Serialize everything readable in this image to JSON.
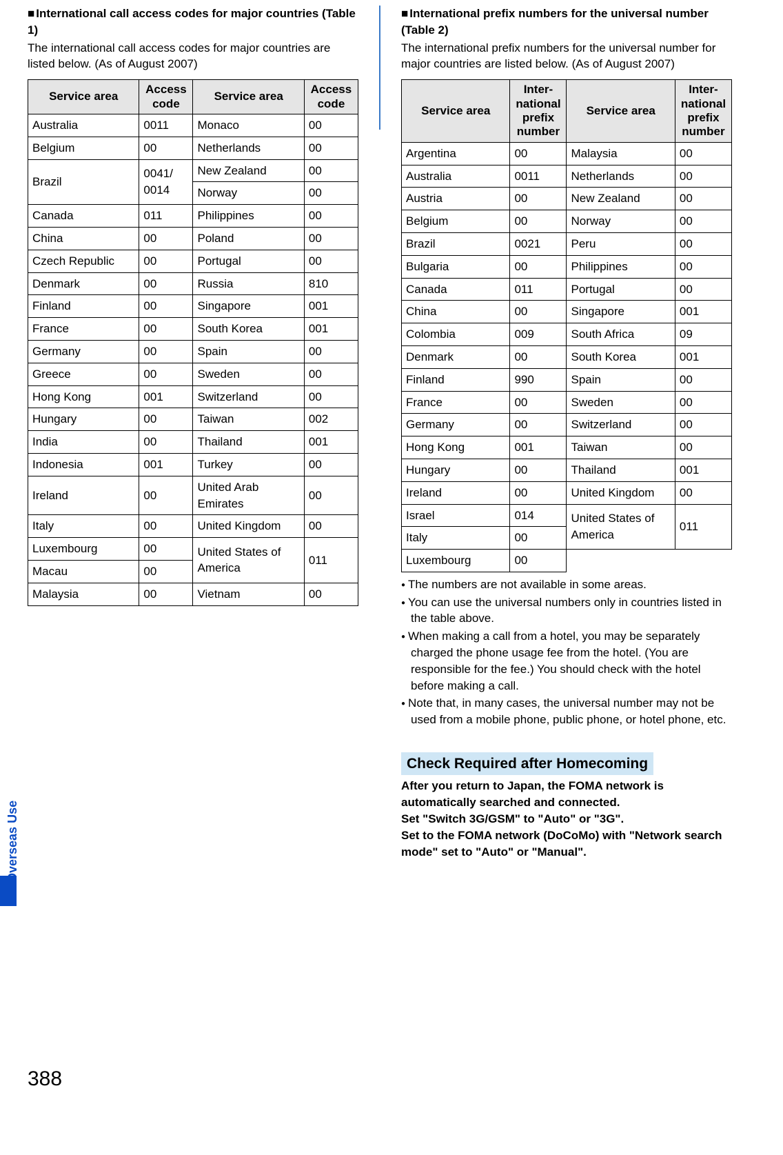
{
  "sideLabel": "Overseas Use",
  "pageNumber": "388",
  "left": {
    "heading": "International call access codes for major countries (Table 1)",
    "intro": "The international call access codes for major countries are listed below. (As of August 2007)",
    "headers": {
      "area": "Service area",
      "code": "Access code"
    }
  },
  "right": {
    "heading": "International prefix numbers for the universal number (Table 2)",
    "intro": "The international prefix numbers for the universal number for major countries are listed below. (As of August 2007)",
    "headers": {
      "area": "Service area",
      "code": "Inter-national prefix number"
    },
    "notes": [
      "The numbers are not available in some areas.",
      "You can use the universal numbers only in countries listed in the table above.",
      "When making a call from a hotel, you may be separately charged the phone usage fee from the hotel. (You are responsible for the fee.) You should check with the hotel before making a call.",
      "Note that, in many cases, the universal number may not be used from a mobile phone, public phone, or hotel phone, etc."
    ],
    "sectionHeading": "Check Required after Homecoming",
    "bold1": "After you return to Japan, the FOMA network is automatically searched and connected.",
    "bold2": "Set \"Switch 3G/GSM\" to \"Auto\" or \"3G\".",
    "bold3": "Set to the FOMA network (DoCoMo) with \"Network search mode\" set to \"Auto\" or \"Manual\"."
  },
  "t1L": [
    [
      "Australia",
      "0011"
    ],
    [
      "Belgium",
      "00"
    ],
    [
      "Brazil",
      "0041/\n0014"
    ],
    [
      "Canada",
      "011"
    ],
    [
      "China",
      "00"
    ],
    [
      "Czech Republic",
      "00"
    ],
    [
      "Denmark",
      "00"
    ],
    [
      "Finland",
      "00"
    ],
    [
      "France",
      "00"
    ],
    [
      "Germany",
      "00"
    ],
    [
      "Greece",
      "00"
    ],
    [
      "Hong Kong",
      "001"
    ],
    [
      "Hungary",
      "00"
    ],
    [
      "India",
      "00"
    ],
    [
      "Indonesia",
      "001"
    ],
    [
      "Ireland",
      "00"
    ],
    [
      "Italy",
      "00"
    ],
    [
      "Luxembourg",
      "00"
    ],
    [
      "Macau",
      "00"
    ],
    [
      "Malaysia",
      "00"
    ]
  ],
  "t1R": [
    [
      "Monaco",
      "00"
    ],
    [
      "Netherlands",
      "00"
    ],
    [
      "New Zealand",
      "00"
    ],
    [
      "Norway",
      "00"
    ],
    [
      "Philippines",
      "00"
    ],
    [
      "Poland",
      "00"
    ],
    [
      "Portugal",
      "00"
    ],
    [
      "Russia",
      "810"
    ],
    [
      "Singapore",
      "001"
    ],
    [
      "South Korea",
      "001"
    ],
    [
      "Spain",
      "00"
    ],
    [
      "Sweden",
      "00"
    ],
    [
      "Switzerland",
      "00"
    ],
    [
      "Taiwan",
      "002"
    ],
    [
      "Thailand",
      "001"
    ],
    [
      "Turkey",
      "00"
    ],
    [
      "United Arab Emirates",
      "00"
    ],
    [
      "United Kingdom",
      "00"
    ],
    [
      "United States of America",
      "011"
    ],
    [
      "Vietnam",
      "00"
    ]
  ],
  "t2L": [
    [
      "Argentina",
      "00"
    ],
    [
      "Australia",
      "0011"
    ],
    [
      "Austria",
      "00"
    ],
    [
      "Belgium",
      "00"
    ],
    [
      "Brazil",
      "0021"
    ],
    [
      "Bulgaria",
      "00"
    ],
    [
      "Canada",
      "011"
    ],
    [
      "China",
      "00"
    ],
    [
      "Colombia",
      "009"
    ],
    [
      "Denmark",
      "00"
    ],
    [
      "Finland",
      "990"
    ],
    [
      "France",
      "00"
    ],
    [
      "Germany",
      "00"
    ],
    [
      "Hong Kong",
      "001"
    ],
    [
      "Hungary",
      "00"
    ],
    [
      "Ireland",
      "00"
    ],
    [
      "Israel",
      "014"
    ],
    [
      "Italy",
      "00"
    ],
    [
      "Luxembourg",
      "00"
    ]
  ],
  "t2R": [
    [
      "Malaysia",
      "00"
    ],
    [
      "Netherlands",
      "00"
    ],
    [
      "New Zealand",
      "00"
    ],
    [
      "Norway",
      "00"
    ],
    [
      "Peru",
      "00"
    ],
    [
      "Philippines",
      "00"
    ],
    [
      "Portugal",
      "00"
    ],
    [
      "Singapore",
      "001"
    ],
    [
      "South Africa",
      "09"
    ],
    [
      "South Korea",
      "001"
    ],
    [
      "Spain",
      "00"
    ],
    [
      "Sweden",
      "00"
    ],
    [
      "Switzerland",
      "00"
    ],
    [
      "Taiwan",
      "00"
    ],
    [
      "Thailand",
      "001"
    ],
    [
      "United Kingdom",
      "00"
    ],
    [
      "United States of America",
      "011"
    ]
  ]
}
